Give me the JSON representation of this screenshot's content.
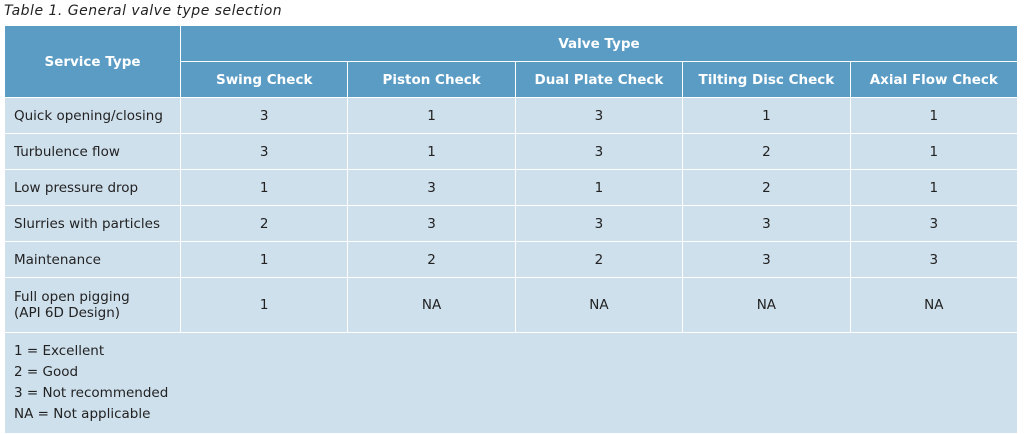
{
  "caption": "Table 1. General valve type selection",
  "header": {
    "service_type": "Service Type",
    "valve_type": "Valve Type",
    "columns": [
      "Swing Check",
      "Piston Check",
      "Dual Plate Check",
      "Tilting Disc Check",
      "Axial Flow Check"
    ]
  },
  "rows": [
    {
      "service": "Quick opening/closing",
      "values": [
        "3",
        "1",
        "3",
        "1",
        "1"
      ]
    },
    {
      "service": "Turbulence flow",
      "values": [
        "3",
        "1",
        "3",
        "2",
        "1"
      ]
    },
    {
      "service": "Low pressure drop",
      "values": [
        "1",
        "3",
        "1",
        "2",
        "1"
      ]
    },
    {
      "service": "Slurries with particles",
      "values": [
        "2",
        "3",
        "3",
        "3",
        "3"
      ]
    },
    {
      "service": "Maintenance",
      "values": [
        "1",
        "2",
        "2",
        "3",
        "3"
      ]
    },
    {
      "service": "Full open pigging",
      "service_line2": "(API 6D Design)",
      "values": [
        "1",
        "NA",
        "NA",
        "NA",
        "NA"
      ]
    }
  ],
  "legend": [
    "1 = Excellent",
    "2 = Good",
    "3 = Not recommended",
    "NA = Not applicable"
  ],
  "colors": {
    "header": "#5b9cc5",
    "body": "#cfe0ed"
  }
}
